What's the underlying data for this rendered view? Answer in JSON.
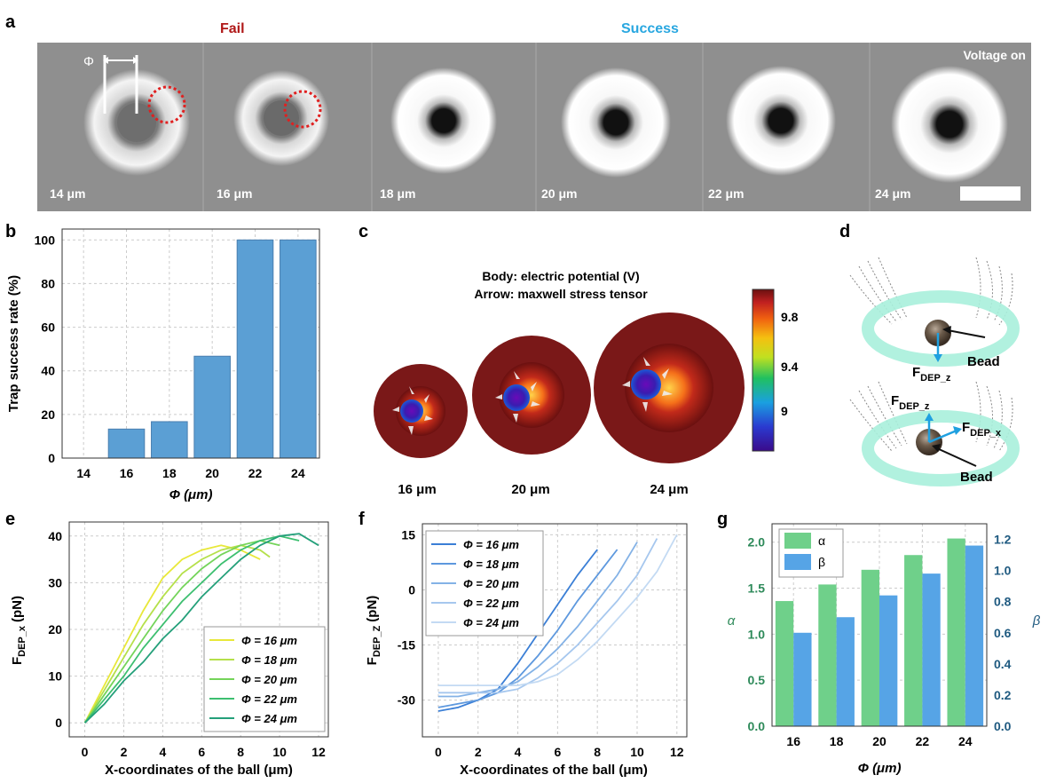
{
  "panel_letters": {
    "a": "a",
    "b": "b",
    "c": "c",
    "d": "d",
    "e": "e",
    "f": "f",
    "g": "g"
  },
  "panel_a": {
    "fail_label": "Fail",
    "success_label": "Success",
    "voltage_label": "Voltage on",
    "phi_symbol": "Φ",
    "frames": [
      "14 μm",
      "16 μm",
      "18 μm",
      "20 μm",
      "22 μm",
      "24 μm"
    ],
    "colors": {
      "fail": "#b01818",
      "success": "#29a7e0",
      "circle": "#e02020"
    }
  },
  "panel_b": {
    "chart_data": {
      "type": "bar",
      "categories": [
        "14",
        "16",
        "18",
        "20",
        "22",
        "24"
      ],
      "values": [
        0,
        13.3,
        16.7,
        46.7,
        100,
        100
      ],
      "ylabel": "Trap success rate (%)",
      "xlabel": "Φ (μm)",
      "ylim": [
        0,
        105
      ],
      "yticks": [
        "0",
        "20",
        "40",
        "60",
        "80",
        "100"
      ],
      "grid": true,
      "bar_color": "#5b9fd4"
    }
  },
  "panel_c": {
    "title_line1": "Body: electric potential (V)",
    "title_line2": "Arrow: maxwell stress tensor",
    "labels": [
      "16 μm",
      "20 μm",
      "24 μm"
    ],
    "colorbar_ticks": [
      "9.8",
      "9.4",
      "9"
    ]
  },
  "panel_d": {
    "force_z_top": "F",
    "force_z_sub": "DEP_z",
    "force_x_sub": "DEP_x",
    "bead_label": "Bead"
  },
  "panel_e": {
    "chart_data": {
      "type": "line",
      "xlabel": "X-coordinates of the ball (μm)",
      "ylabel_main": "F",
      "ylabel_sub": "DEP_x",
      "ylabel_unit": "(pN)",
      "xlim": [
        -0.8,
        12.5
      ],
      "ylim": [
        -3,
        43
      ],
      "xticks": [
        "0",
        "2",
        "4",
        "6",
        "8",
        "10",
        "12"
      ],
      "yticks": [
        "0",
        "10",
        "20",
        "30",
        "40"
      ],
      "grid": true,
      "legend_position": "bottom-right",
      "series": [
        {
          "name": "Φ = 16 μm",
          "color": "#e8e83a",
          "x": [
            0,
            1,
            2,
            3,
            4,
            5,
            6,
            7,
            8,
            9
          ],
          "y": [
            0,
            8,
            16,
            24,
            31,
            35,
            37,
            38,
            37,
            35
          ]
        },
        {
          "name": "Φ = 18 μm",
          "color": "#b5e04a",
          "x": [
            0,
            1,
            2,
            3,
            4,
            5,
            6,
            7,
            8,
            9,
            9.5
          ],
          "y": [
            0,
            7,
            14,
            21,
            27,
            32,
            35,
            37,
            38,
            37,
            35.5
          ]
        },
        {
          "name": "Φ = 20 μm",
          "color": "#74d45a",
          "x": [
            0,
            1,
            2,
            3,
            4,
            5,
            6,
            7,
            8,
            9,
            10
          ],
          "y": [
            0,
            6,
            12,
            18,
            24,
            29,
            33,
            36,
            38,
            39,
            38
          ]
        },
        {
          "name": "Φ = 22 μm",
          "color": "#3dbf70",
          "x": [
            0,
            1,
            2,
            3,
            4,
            5,
            6,
            7,
            8,
            9,
            10,
            11
          ],
          "y": [
            0,
            5,
            10,
            16,
            21,
            26,
            30,
            34,
            37,
            39,
            40,
            39
          ]
        },
        {
          "name": "Φ = 24 μm",
          "color": "#24a07a",
          "x": [
            0,
            1,
            2,
            3,
            4,
            5,
            6,
            7,
            8,
            9,
            10,
            11,
            12
          ],
          "y": [
            0,
            4,
            9,
            13,
            18,
            22,
            27,
            31,
            35,
            38,
            40,
            40.5,
            38
          ]
        }
      ]
    }
  },
  "panel_f": {
    "chart_data": {
      "type": "line",
      "xlabel": "X-coordinates of the ball (μm)",
      "ylabel_main": "F",
      "ylabel_sub": "DEP_Z",
      "ylabel_unit": "(pN)",
      "xlim": [
        -0.8,
        12.5
      ],
      "ylim": [
        -40,
        18
      ],
      "xticks": [
        "0",
        "2",
        "4",
        "6",
        "8",
        "10",
        "12"
      ],
      "yticks": [
        "-30",
        "-15",
        "0",
        "15"
      ],
      "grid": true,
      "legend_position": "top-left",
      "series": [
        {
          "name": "Φ = 16 μm",
          "color": "#3b7fd6",
          "x": [
            0,
            1,
            2,
            3,
            4,
            5,
            6,
            7,
            8
          ],
          "y": [
            -33,
            -32,
            -30,
            -27,
            -20,
            -12,
            -4,
            4,
            11
          ]
        },
        {
          "name": "Φ = 18 μm",
          "color": "#5d98de",
          "x": [
            0,
            1,
            2,
            3,
            4,
            5,
            6,
            7,
            8,
            9
          ],
          "y": [
            -32,
            -31,
            -30,
            -28,
            -24,
            -18,
            -11,
            -3,
            4,
            11
          ]
        },
        {
          "name": "Φ = 20 μm",
          "color": "#84b2e6",
          "x": [
            0,
            1,
            2,
            3,
            4,
            5,
            6,
            7,
            8,
            9,
            10
          ],
          "y": [
            -29,
            -29,
            -28,
            -27,
            -25,
            -21,
            -16,
            -10,
            -3,
            4,
            13
          ]
        },
        {
          "name": "Φ = 22 μm",
          "color": "#a6c7ee",
          "x": [
            0,
            1,
            2,
            3,
            4,
            5,
            6,
            7,
            8,
            9,
            10,
            11
          ],
          "y": [
            -28,
            -28,
            -28,
            -28,
            -27,
            -24,
            -20,
            -15,
            -9,
            -3,
            4,
            14
          ]
        },
        {
          "name": "Φ = 24 μm",
          "color": "#c3daf3",
          "x": [
            0,
            1,
            2,
            3,
            4,
            5,
            6,
            7,
            8,
            9,
            10,
            11,
            12
          ],
          "y": [
            -26,
            -26,
            -26,
            -26,
            -26,
            -25,
            -23,
            -19,
            -14,
            -8,
            -2,
            5,
            15
          ]
        }
      ]
    }
  },
  "panel_g": {
    "chart_data": {
      "type": "bar",
      "categories": [
        "16",
        "18",
        "20",
        "22",
        "24"
      ],
      "xlabel": "Φ (μm)",
      "ylabel_left": "α",
      "ylabel_right": "β",
      "ylim_left": [
        0,
        2.2
      ],
      "ylim_right": [
        0,
        1.3
      ],
      "yticks_left": [
        "0.0",
        "0.5",
        "1.0",
        "1.5",
        "2.0"
      ],
      "yticks_right": [
        "0.0",
        "0.2",
        "0.4",
        "0.6",
        "0.8",
        "1.0",
        "1.2"
      ],
      "legend_position": "top-left",
      "series": [
        {
          "name": "α",
          "axis": "left",
          "color": "#6fd08a",
          "values": [
            1.36,
            1.54,
            1.7,
            1.86,
            2.04
          ]
        },
        {
          "name": "β",
          "axis": "right",
          "color": "#56a4e6",
          "values": [
            0.6,
            0.7,
            0.84,
            0.98,
            1.16
          ]
        }
      ],
      "left_color": "#2e8a5a",
      "right_color": "#1f5a80"
    }
  }
}
